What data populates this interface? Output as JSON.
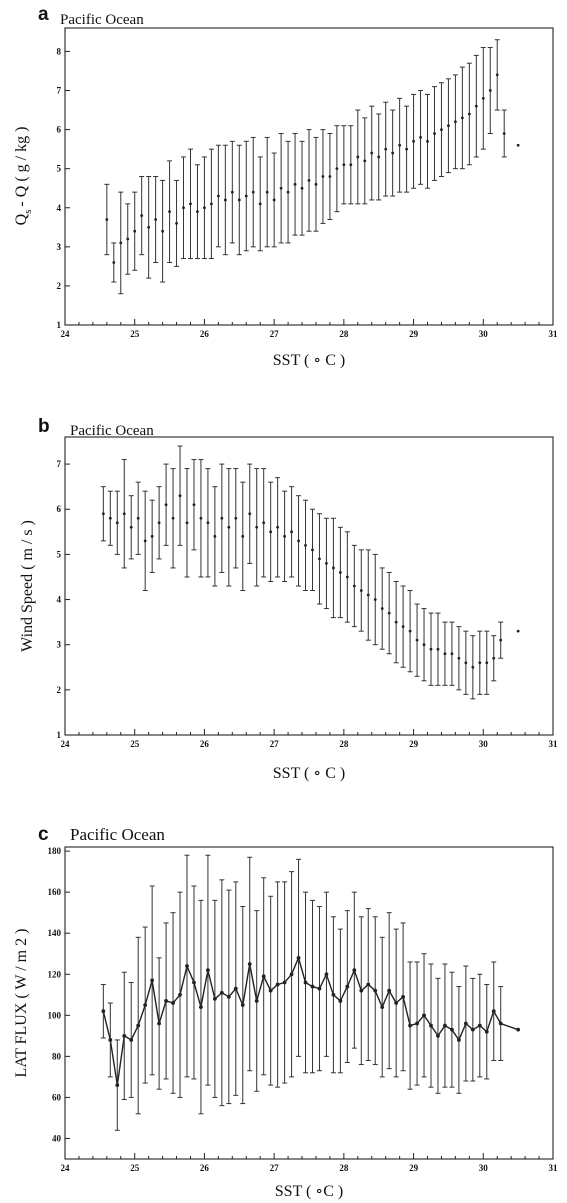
{
  "chart_data": [
    {
      "panel": "a",
      "type": "scatter",
      "title": "Pacific Ocean",
      "xlabel": "SST ( ∘ C )",
      "ylabel": "Q s - Q ( g / kg )",
      "ylabel_parts": {
        "main": "Q",
        "sub": "s",
        "rest": "- Q ( g / kg )"
      },
      "xlim": [
        24,
        31
      ],
      "ylim": [
        1,
        8.6
      ],
      "xticks": [
        24,
        25,
        26,
        27,
        28,
        29,
        30,
        31
      ],
      "yticks": [
        1,
        2,
        3,
        4,
        5,
        6,
        7,
        8
      ],
      "connected": false,
      "series": [
        {
          "x": [
            24.6,
            24.7,
            24.8,
            24.9,
            25.0,
            25.1,
            25.2,
            25.3,
            25.4,
            25.5,
            25.6,
            25.7,
            25.8,
            25.9,
            26.0,
            26.1,
            26.2,
            26.3,
            26.4,
            26.5,
            26.6,
            26.7,
            26.8,
            26.9,
            27.0,
            27.1,
            27.2,
            27.3,
            27.4,
            27.5,
            27.6,
            27.7,
            27.8,
            27.9,
            28.0,
            28.1,
            28.2,
            28.3,
            28.4,
            28.5,
            28.6,
            28.7,
            28.8,
            28.9,
            29.0,
            29.1,
            29.2,
            29.3,
            29.4,
            29.5,
            29.6,
            29.7,
            29.8,
            29.9,
            30.0,
            30.1,
            30.2,
            30.3,
            30.5
          ],
          "y": [
            3.7,
            2.6,
            3.1,
            3.2,
            3.4,
            3.8,
            3.5,
            3.7,
            3.4,
            3.9,
            3.6,
            4.0,
            4.1,
            3.9,
            4.0,
            4.1,
            4.3,
            4.2,
            4.4,
            4.2,
            4.3,
            4.4,
            4.1,
            4.4,
            4.2,
            4.5,
            4.4,
            4.6,
            4.5,
            4.7,
            4.6,
            4.8,
            4.8,
            5.0,
            5.1,
            5.1,
            5.3,
            5.2,
            5.4,
            5.3,
            5.5,
            5.4,
            5.6,
            5.5,
            5.7,
            5.8,
            5.7,
            5.9,
            6.0,
            6.1,
            6.2,
            6.3,
            6.4,
            6.6,
            6.8,
            7.0,
            7.4,
            5.9,
            5.6
          ],
          "err": [
            0.9,
            0.5,
            1.3,
            0.9,
            1.0,
            1.0,
            1.3,
            1.1,
            1.3,
            1.3,
            1.1,
            1.3,
            1.4,
            1.2,
            1.3,
            1.4,
            1.3,
            1.4,
            1.3,
            1.4,
            1.4,
            1.4,
            1.2,
            1.4,
            1.2,
            1.4,
            1.3,
            1.3,
            1.2,
            1.3,
            1.2,
            1.2,
            1.1,
            1.1,
            1.0,
            1.0,
            1.2,
            1.1,
            1.2,
            1.1,
            1.2,
            1.1,
            1.2,
            1.1,
            1.2,
            1.2,
            1.2,
            1.2,
            1.2,
            1.2,
            1.2,
            1.3,
            1.3,
            1.3,
            1.3,
            1.1,
            0.9,
            0.6,
            0.0
          ]
        }
      ]
    },
    {
      "panel": "b",
      "type": "scatter",
      "title": "Pacific Ocean",
      "xlabel": "SST ( ∘ C )",
      "ylabel": "Wind Speed ( m / s )",
      "xlim": [
        24,
        31
      ],
      "ylim": [
        1,
        7.6
      ],
      "xticks": [
        24,
        25,
        26,
        27,
        28,
        29,
        30,
        31
      ],
      "yticks": [
        1,
        2,
        3,
        4,
        5,
        6,
        7
      ],
      "connected": false,
      "series": [
        {
          "x": [
            24.55,
            24.65,
            24.75,
            24.85,
            24.95,
            25.05,
            25.15,
            25.25,
            25.35,
            25.45,
            25.55,
            25.65,
            25.75,
            25.85,
            25.95,
            26.05,
            26.15,
            26.25,
            26.35,
            26.45,
            26.55,
            26.65,
            26.75,
            26.85,
            26.95,
            27.05,
            27.15,
            27.25,
            27.35,
            27.45,
            27.55,
            27.65,
            27.75,
            27.85,
            27.95,
            28.05,
            28.15,
            28.25,
            28.35,
            28.45,
            28.55,
            28.65,
            28.75,
            28.85,
            28.95,
            29.05,
            29.15,
            29.25,
            29.35,
            29.45,
            29.55,
            29.65,
            29.75,
            29.85,
            29.95,
            30.05,
            30.15,
            30.25,
            30.5
          ],
          "y": [
            5.9,
            5.8,
            5.7,
            5.9,
            5.6,
            5.8,
            5.3,
            5.4,
            5.7,
            6.1,
            5.8,
            6.3,
            5.7,
            6.1,
            5.8,
            5.7,
            5.4,
            5.8,
            5.6,
            5.8,
            5.4,
            5.9,
            5.6,
            5.7,
            5.5,
            5.6,
            5.4,
            5.5,
            5.3,
            5.2,
            5.1,
            4.9,
            4.8,
            4.7,
            4.6,
            4.5,
            4.3,
            4.2,
            4.1,
            4.0,
            3.8,
            3.7,
            3.5,
            3.4,
            3.3,
            3.1,
            3.0,
            2.9,
            2.9,
            2.8,
            2.8,
            2.7,
            2.6,
            2.5,
            2.6,
            2.6,
            2.7,
            3.1,
            3.3
          ],
          "err": [
            0.6,
            0.6,
            0.7,
            1.2,
            0.7,
            0.8,
            1.1,
            0.8,
            0.8,
            0.9,
            1.1,
            1.1,
            1.2,
            1.0,
            1.3,
            1.2,
            1.1,
            1.2,
            1.3,
            1.1,
            1.2,
            1.1,
            1.3,
            1.2,
            1.1,
            1.1,
            1.0,
            1.0,
            1.0,
            1.0,
            0.9,
            1.0,
            1.0,
            1.1,
            1.0,
            1.0,
            0.9,
            0.9,
            1.0,
            1.0,
            0.9,
            0.9,
            0.9,
            0.9,
            0.9,
            0.8,
            0.8,
            0.8,
            0.8,
            0.7,
            0.7,
            0.7,
            0.7,
            0.7,
            0.7,
            0.7,
            0.5,
            0.4,
            0.0
          ]
        }
      ]
    },
    {
      "panel": "c",
      "type": "line",
      "title": "Pacific Ocean",
      "xlabel": "SST ( ∘C )",
      "ylabel": "LAT FLUX ( W / m 2 )",
      "xlim": [
        24,
        31
      ],
      "ylim": [
        30,
        182
      ],
      "xticks": [
        24,
        25,
        26,
        27,
        28,
        29,
        30,
        31
      ],
      "yticks": [
        40,
        60,
        80,
        100,
        120,
        140,
        160,
        180
      ],
      "connected": true,
      "series": [
        {
          "x": [
            24.55,
            24.65,
            24.75,
            24.85,
            24.95,
            25.05,
            25.15,
            25.25,
            25.35,
            25.45,
            25.55,
            25.65,
            25.75,
            25.85,
            25.95,
            26.05,
            26.15,
            26.25,
            26.35,
            26.45,
            26.55,
            26.65,
            26.75,
            26.85,
            26.95,
            27.05,
            27.15,
            27.25,
            27.35,
            27.45,
            27.55,
            27.65,
            27.75,
            27.85,
            27.95,
            28.05,
            28.15,
            28.25,
            28.35,
            28.45,
            28.55,
            28.65,
            28.75,
            28.85,
            28.95,
            29.05,
            29.15,
            29.25,
            29.35,
            29.45,
            29.55,
            29.65,
            29.75,
            29.85,
            29.95,
            30.05,
            30.15,
            30.25,
            30.5
          ],
          "y": [
            102,
            88,
            66,
            90,
            88,
            95,
            105,
            117,
            96,
            107,
            106,
            110,
            124,
            116,
            104,
            122,
            108,
            111,
            109,
            113,
            105,
            125,
            107,
            119,
            112,
            115,
            116,
            120,
            128,
            116,
            114,
            113,
            120,
            110,
            107,
            114,
            122,
            112,
            115,
            112,
            104,
            112,
            106,
            109,
            95,
            96,
            100,
            95,
            90,
            95,
            93,
            88,
            96,
            93,
            95,
            92,
            102,
            96,
            93
          ],
          "err": [
            13,
            18,
            22,
            31,
            28,
            43,
            38,
            46,
            32,
            38,
            44,
            50,
            54,
            47,
            52,
            56,
            48,
            55,
            52,
            52,
            48,
            52,
            44,
            48,
            46,
            50,
            49,
            50,
            48,
            44,
            42,
            40,
            40,
            38,
            35,
            37,
            38,
            36,
            37,
            36,
            34,
            38,
            36,
            36,
            31,
            30,
            30,
            30,
            28,
            30,
            28,
            26,
            28,
            25,
            25,
            23,
            24,
            18,
            0
          ]
        }
      ]
    }
  ]
}
